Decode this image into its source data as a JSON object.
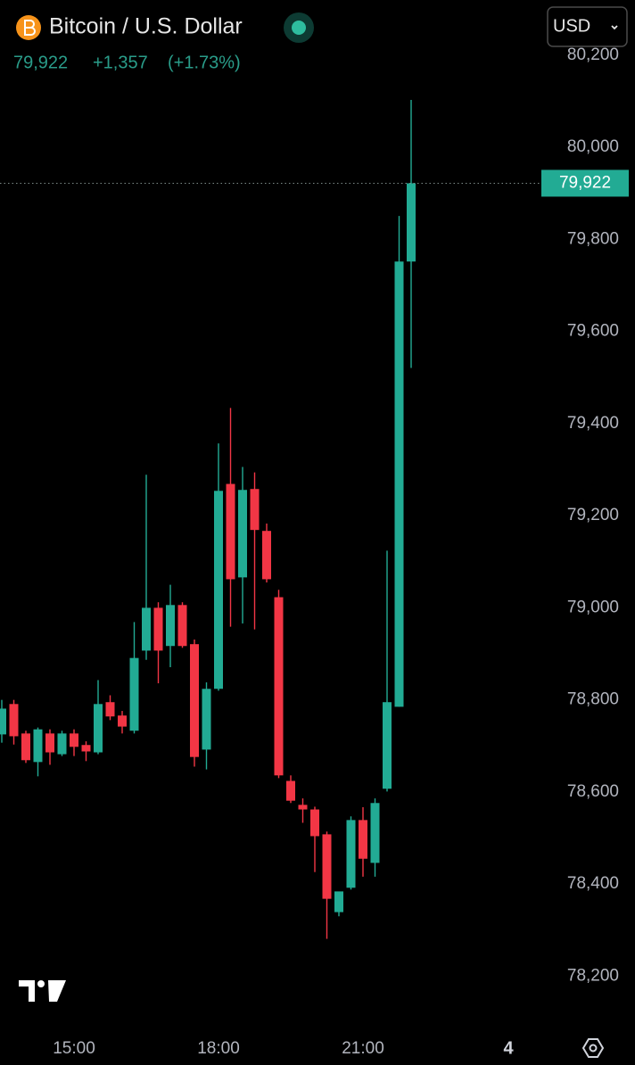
{
  "header": {
    "title": "Bitcoin / U.S. Dollar",
    "change": "+1,357",
    "change_percent": "(+1.73%)",
    "currency": "USD"
  },
  "footer": {
    "range": "4"
  },
  "chart_data": {
    "type": "candlestick",
    "categories": [
      null,
      null,
      null,
      null,
      null,
      null,
      "15:00",
      null,
      null,
      null,
      null,
      null,
      null,
      null,
      null,
      null,
      null,
      null,
      "18:00",
      null,
      null,
      null,
      null,
      null,
      null,
      null,
      null,
      null,
      null,
      null,
      "21:00",
      null,
      null,
      null,
      null
    ],
    "open": [
      78725,
      78791,
      78727,
      78665,
      78727,
      78682,
      78727,
      78702,
      78686,
      78795,
      78766,
      78733,
      78907,
      79000,
      78917,
      79006,
      78921,
      78692,
      78824,
      79269,
      79066,
      79258,
      79167,
      79023,
      78624,
      78572,
      78562,
      78508,
      78339,
      78392,
      78539,
      78446,
      78607,
      78785,
      79752
    ],
    "high": [
      78800,
      78800,
      78733,
      78740,
      78736,
      78733,
      78736,
      78710,
      78843,
      78810,
      78776,
      78969,
      79289,
      79012,
      79050,
      79012,
      78931,
      78838,
      79357,
      79434,
      79306,
      79294,
      79183,
      79039,
      78636,
      78586,
      78568,
      78514,
      78381,
      78547,
      78567,
      78586,
      79124,
      79851,
      80103
    ],
    "low": [
      78707,
      78703,
      78663,
      78634,
      78659,
      78678,
      78678,
      78667,
      78682,
      78756,
      78727,
      78727,
      78887,
      78836,
      78871,
      78913,
      78655,
      78649,
      78820,
      78959,
      78966,
      78953,
      79055,
      78630,
      78576,
      78533,
      78426,
      78281,
      78330,
      78388,
      78416,
      78416,
      78601,
      78785,
      79521
    ],
    "close": [
      78781,
      78721,
      78669,
      78736,
      78686,
      78727,
      78698,
      78688,
      78791,
      78764,
      78742,
      78891,
      79000,
      78907,
      79006,
      78917,
      78676,
      78824,
      79254,
      79062,
      79256,
      79169,
      79062,
      78636,
      78581,
      78562,
      78504,
      78368,
      78384,
      78539,
      78455,
      78576,
      78795,
      79752,
      79922
    ],
    "up_color": "#22ab94",
    "down_color": "#f23645",
    "last_price": {
      "value": 79922,
      "label": "79,922"
    },
    "ylim": [
      78100,
      80320
    ],
    "yticks": [
      {
        "value": 78200,
        "label": "78,200"
      },
      {
        "value": 78400,
        "label": "78,400"
      },
      {
        "value": 78600,
        "label": "78,600"
      },
      {
        "value": 78800,
        "label": "78,800"
      },
      {
        "value": 79000,
        "label": "79,000"
      },
      {
        "value": 79200,
        "label": "79,200"
      },
      {
        "value": 79400,
        "label": "79,400"
      },
      {
        "value": 79600,
        "label": "79,600"
      },
      {
        "value": 79800,
        "label": "79,800"
      },
      {
        "value": 80000,
        "label": "80,000"
      },
      {
        "value": 80200,
        "label": "80,200"
      }
    ]
  }
}
